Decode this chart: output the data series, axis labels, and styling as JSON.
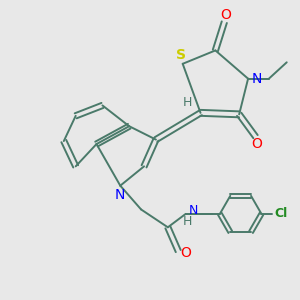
{
  "background_color": "#e8e8e8",
  "bond_color": "#4a7a6a",
  "atom_colors": {
    "O": "#ff0000",
    "N": "#0000ff",
    "S": "#cccc00",
    "Cl": "#228b22",
    "H": "#4a7a6a",
    "C": "#4a7a6a"
  },
  "figsize": [
    3.0,
    3.0
  ],
  "dpi": 100
}
